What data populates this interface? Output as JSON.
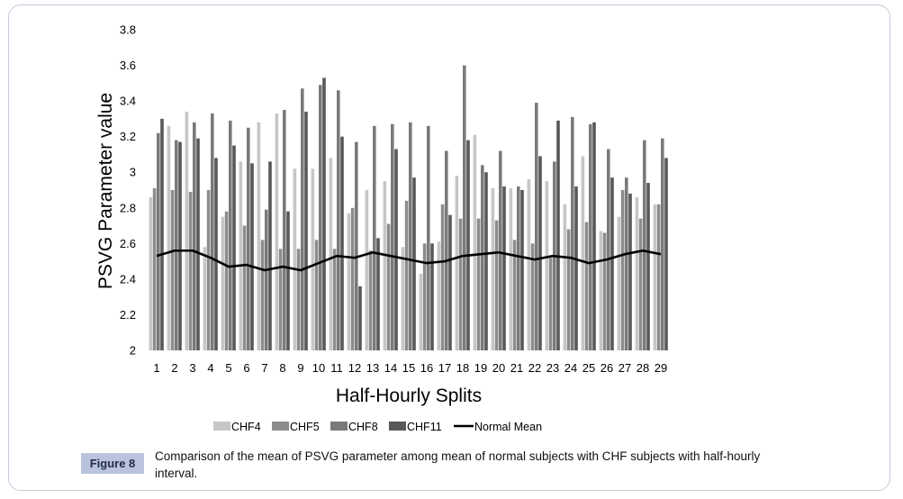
{
  "colors": {
    "CHF4": "#c6c6c6",
    "CHF5": "#8c8c8c",
    "CHF8": "#7a7a7a",
    "CHF11": "#585858",
    "normal_mean": "#000000",
    "frame_border": "#c9c9dd",
    "figure_label_bg": "#b9c4dc"
  },
  "chart_data": {
    "type": "bar",
    "xlabel": "Half-Hourly Splits",
    "ylabel": "PSVG Parameter value",
    "ylim": [
      2,
      3.8
    ],
    "yticks": [
      "2",
      "2.2",
      "2.4",
      "2.6",
      "2.8",
      "3",
      "3.2",
      "3.4",
      "3.6",
      "3.8"
    ],
    "grid": false,
    "legend_position": "bottom",
    "categories": [
      "1",
      "2",
      "3",
      "4",
      "5",
      "6",
      "7",
      "8",
      "9",
      "10",
      "11",
      "12",
      "13",
      "14",
      "15",
      "16",
      "17",
      "18",
      "19",
      "20",
      "21",
      "22",
      "23",
      "24",
      "25",
      "26",
      "27",
      "28",
      "29"
    ],
    "series": [
      {
        "name": "CHF4",
        "kind": "bar",
        "values": [
          2.86,
          3.26,
          3.34,
          2.58,
          2.75,
          3.06,
          3.28,
          3.33,
          3.02,
          3.02,
          3.08,
          2.77,
          2.9,
          2.95,
          2.58,
          2.43,
          2.61,
          2.98,
          3.21,
          2.91,
          2.91,
          2.96,
          2.95,
          2.82,
          3.09,
          2.67,
          2.75,
          2.86,
          2.82
        ]
      },
      {
        "name": "CHF5",
        "kind": "bar",
        "values": [
          2.91,
          2.9,
          2.89,
          2.9,
          2.78,
          2.7,
          2.62,
          2.57,
          2.57,
          2.62,
          2.57,
          2.8,
          2.56,
          2.71,
          2.84,
          2.6,
          2.82,
          2.74,
          2.74,
          2.73,
          2.62,
          2.6,
          2.52,
          2.68,
          2.72,
          2.66,
          2.9,
          2.74,
          2.82
        ]
      },
      {
        "name": "CHF8",
        "kind": "bar",
        "values": [
          3.22,
          3.18,
          3.28,
          3.33,
          3.29,
          3.25,
          2.79,
          3.35,
          3.47,
          3.49,
          3.46,
          3.17,
          3.26,
          3.27,
          3.28,
          3.26,
          3.12,
          3.6,
          3.04,
          3.12,
          2.92,
          3.39,
          3.06,
          3.31,
          3.27,
          3.13,
          2.97,
          3.18,
          3.19
        ]
      },
      {
        "name": "CHF11",
        "kind": "bar",
        "values": [
          3.3,
          3.17,
          3.19,
          3.08,
          3.15,
          3.05,
          3.06,
          2.78,
          3.34,
          3.53,
          3.2,
          2.36,
          2.63,
          3.13,
          2.97,
          2.6,
          2.76,
          3.18,
          3.0,
          2.92,
          2.9,
          3.09,
          3.29,
          2.92,
          3.28,
          2.97,
          2.88,
          2.94,
          3.08
        ]
      },
      {
        "name": "Normal Mean",
        "kind": "line",
        "values": [
          2.53,
          2.56,
          2.56,
          2.52,
          2.47,
          2.48,
          2.45,
          2.47,
          2.45,
          2.49,
          2.53,
          2.52,
          2.55,
          2.53,
          2.51,
          2.49,
          2.5,
          2.53,
          2.54,
          2.55,
          2.53,
          2.51,
          2.53,
          2.52,
          2.49,
          2.51,
          2.54,
          2.56,
          2.54
        ]
      }
    ]
  },
  "caption": {
    "label": "Figure 8",
    "text": "Comparison of the mean of PSVG parameter among mean of normal subjects with CHF subjects with half-hourly interval."
  }
}
